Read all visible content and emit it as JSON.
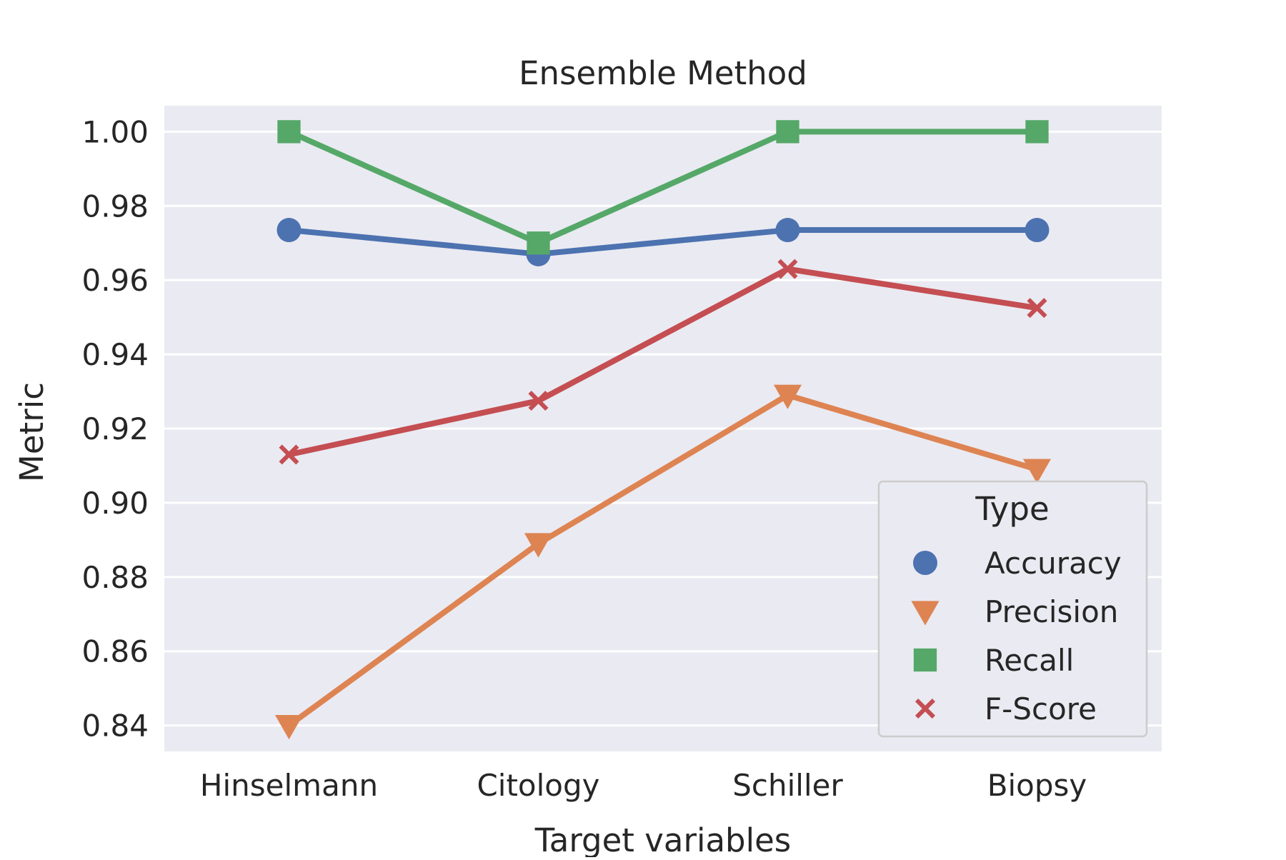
{
  "chart_data": {
    "type": "line",
    "title": "Ensemble Method",
    "xlabel": "Target variables",
    "ylabel": "Metric",
    "categories": [
      "Hinselmann",
      "Citology",
      "Schiller",
      "Biopsy"
    ],
    "ylim": [
      0.833,
      1.007
    ],
    "yticks": [
      0.84,
      0.86,
      0.88,
      0.9,
      0.92,
      0.94,
      0.96,
      0.98,
      1.0
    ],
    "ytick_labels": [
      "0.84",
      "0.86",
      "0.88",
      "0.90",
      "0.92",
      "0.94",
      "0.96",
      "0.98",
      "1.00"
    ],
    "grid": true,
    "legend_placement": "lower-right",
    "legend_title": "Type",
    "series": [
      {
        "name": "Accuracy",
        "color": "#4C72B0",
        "marker": "circle",
        "values": [
          0.9735,
          0.967,
          0.9735,
          0.9735
        ]
      },
      {
        "name": "Precision",
        "color": "#DD8452",
        "marker": "triangle-down",
        "values": [
          0.84,
          0.889,
          0.929,
          0.909
        ]
      },
      {
        "name": "Recall",
        "color": "#55A868",
        "marker": "square",
        "values": [
          1.0,
          0.97,
          1.0,
          1.0
        ]
      },
      {
        "name": "F-Score",
        "color": "#C44E52",
        "marker": "x",
        "values": [
          0.913,
          0.9275,
          0.963,
          0.9525
        ]
      }
    ]
  }
}
